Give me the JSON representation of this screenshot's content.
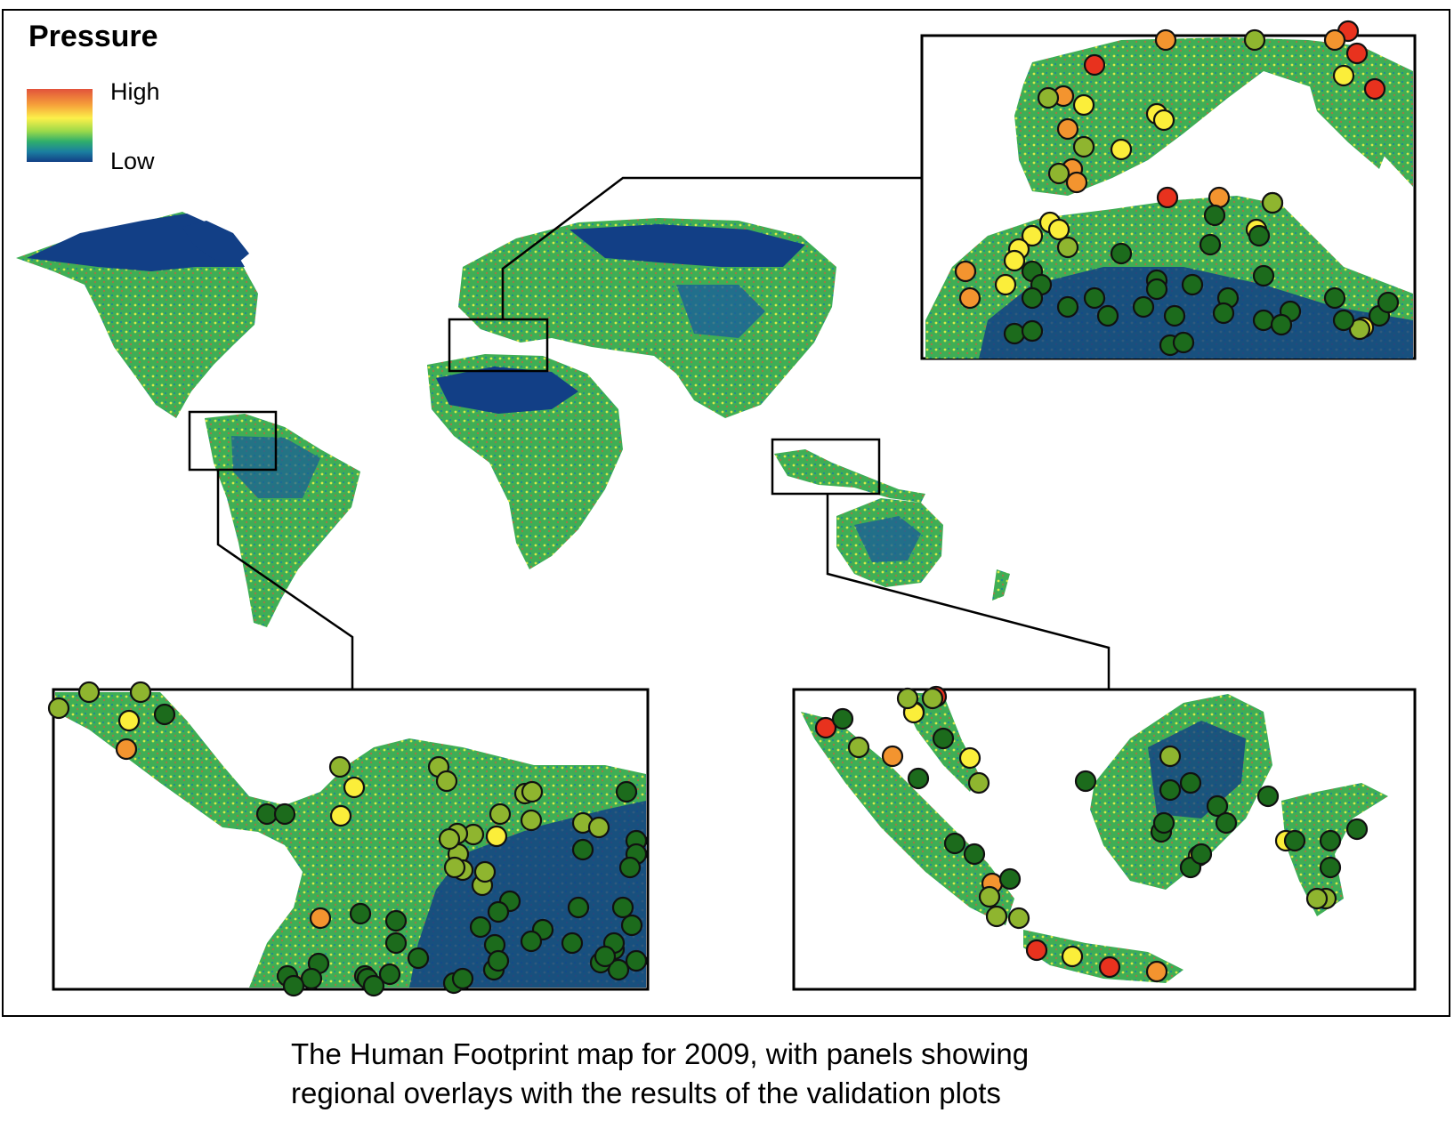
{
  "legend": {
    "title": "Pressure",
    "high_label": "High",
    "low_label": "Low",
    "colors": [
      "#e2533b",
      "#f6a13a",
      "#fcf04a",
      "#9ad94a",
      "#2fae6c",
      "#1b7fa0",
      "#123f86"
    ]
  },
  "caption": {
    "line1": "The Human Footprint map for 2009, with panels showing",
    "line2": "regional overlays with the results of the validation plots"
  },
  "point_colors": {
    "red": "#e8321e",
    "orange": "#f3942f",
    "yellow": "#fbee3a",
    "light_green": "#8fb52f",
    "green": "#1c6b1c"
  },
  "insets": [
    {
      "region": "mediterranean",
      "point_counts": {
        "red": 5,
        "orange": 10,
        "yellow": 13,
        "light_green": 7,
        "green": 30
      }
    },
    {
      "region": "central-america",
      "point_counts": {
        "red": 0,
        "orange": 3,
        "yellow": 3,
        "light_green": 20,
        "green": 40
      }
    },
    {
      "region": "indonesia",
      "point_counts": {
        "red": 4,
        "orange": 4,
        "yellow": 5,
        "light_green": 10,
        "green": 20
      }
    }
  ]
}
